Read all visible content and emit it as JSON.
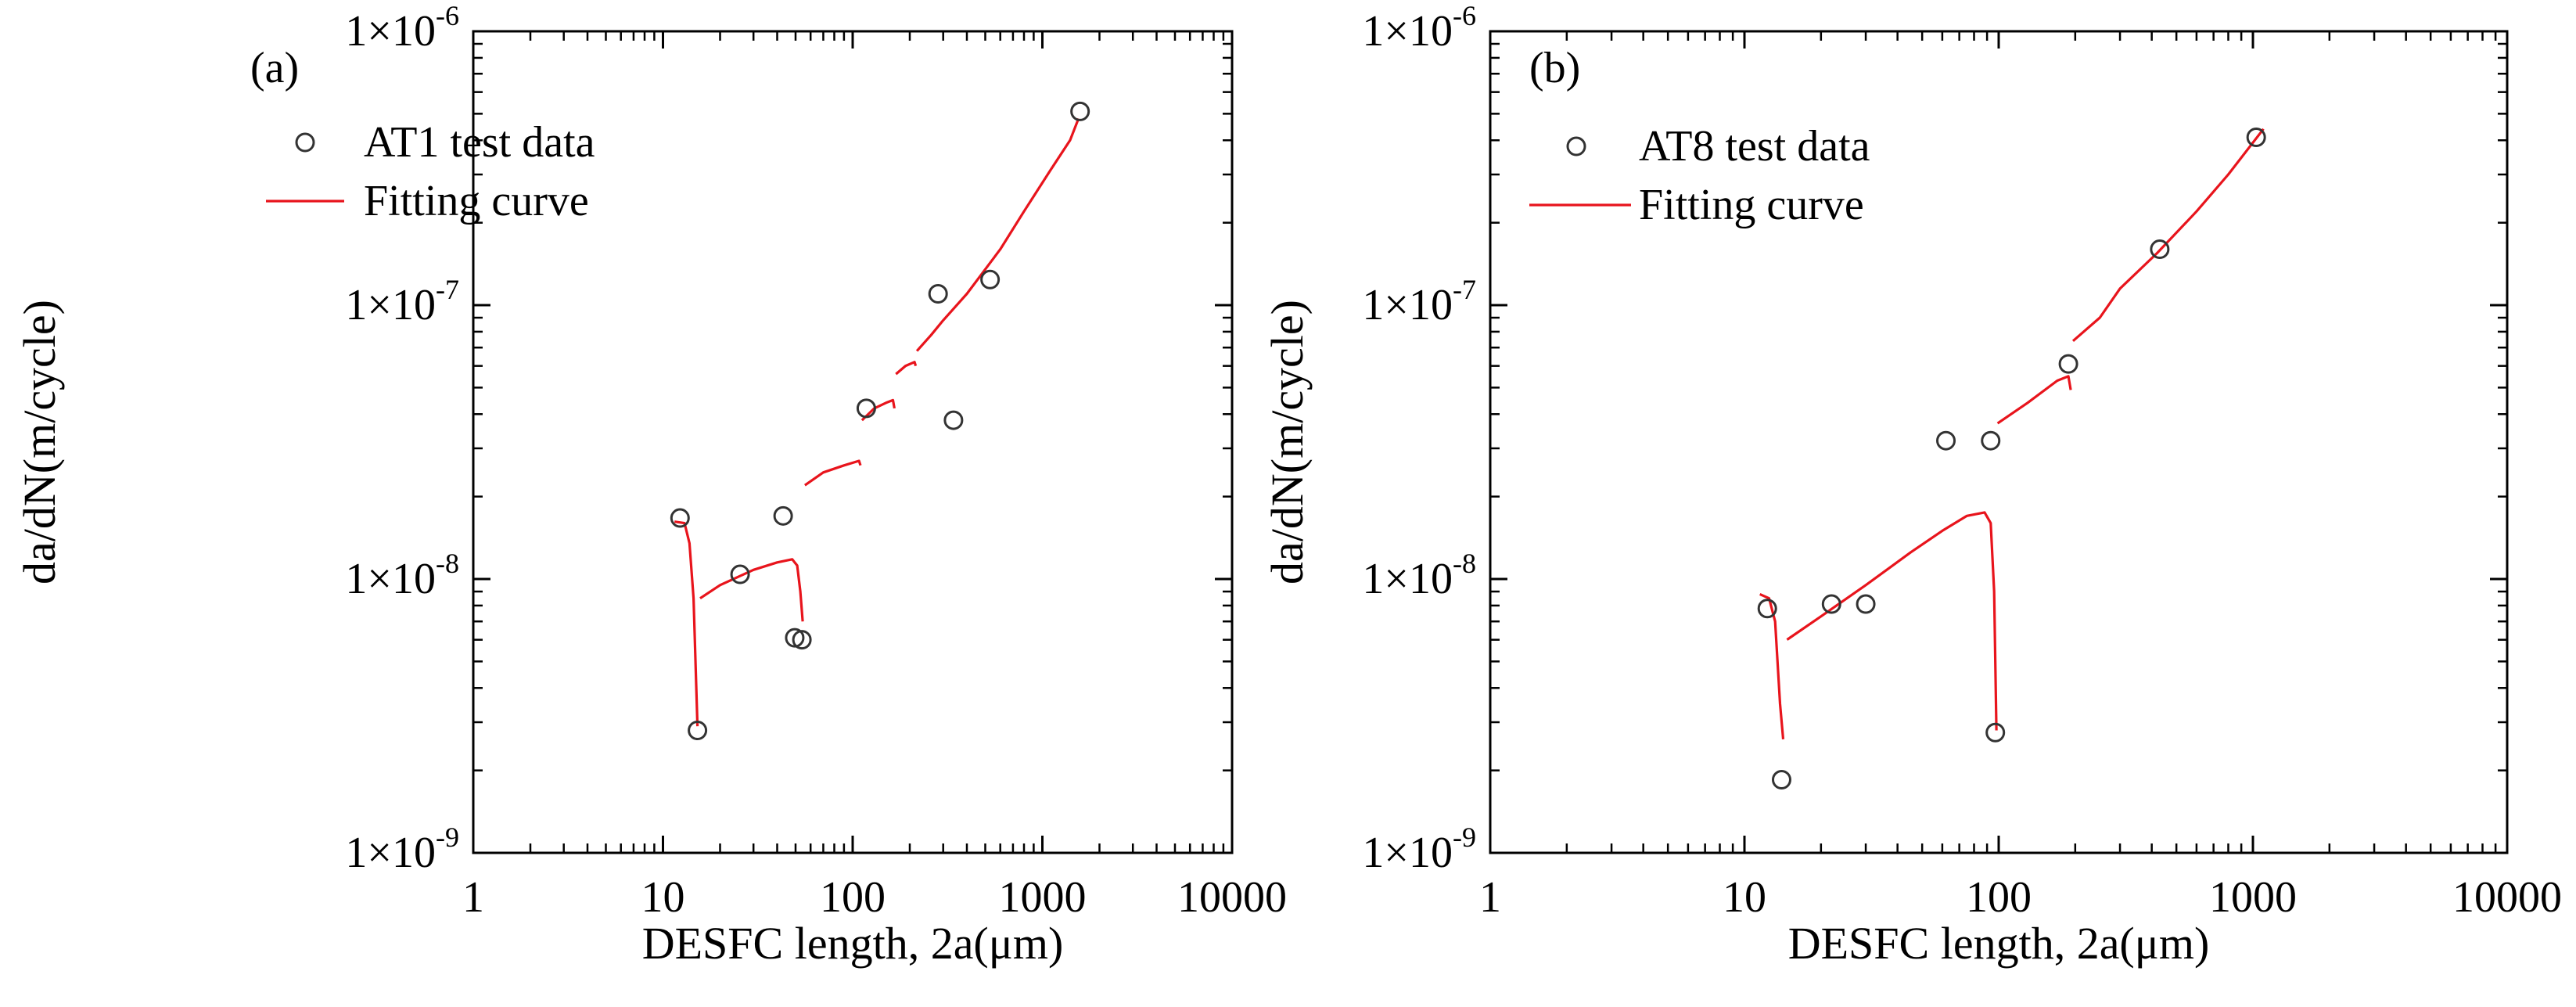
{
  "chart_data": [
    {
      "type": "scatter",
      "panel_label": "(a)",
      "title": "",
      "xlabel": "DESFC length, 2a(μm)",
      "ylabel": "da/dN(m/cycle)",
      "xscale": "log",
      "yscale": "log",
      "xlim": [
        1,
        10000
      ],
      "ylim": [
        1e-09,
        1e-06
      ],
      "x_ticks": [
        {
          "value": 1,
          "label": "1"
        },
        {
          "value": 10,
          "label": "10"
        },
        {
          "value": 100,
          "label": "100"
        },
        {
          "value": 1000,
          "label": "1000"
        },
        {
          "value": 10000,
          "label": "10000"
        }
      ],
      "y_ticks": [
        {
          "value": 1e-09,
          "base": "1×10",
          "exp": "-9"
        },
        {
          "value": 1e-08,
          "base": "1×10",
          "exp": "-8"
        },
        {
          "value": 1e-07,
          "base": "1×10",
          "exp": "-7"
        },
        {
          "value": 1e-06,
          "base": "1×10",
          "exp": "-6"
        }
      ],
      "legend_position": "top-left",
      "series": [
        {
          "name": "AT1 test data",
          "kind": "scatter",
          "marker": "open-circle",
          "color": "#333333",
          "points": [
            [
              12.3,
              1.67e-08
            ],
            [
              15.2,
              2.8e-09
            ],
            [
              25.5,
              1.04e-08
            ],
            [
              43.0,
              1.7e-08
            ],
            [
              49.5,
              6.1e-09
            ],
            [
              54.0,
              6e-09
            ],
            [
              118,
              4.2e-08
            ],
            [
              282,
              1.1e-07
            ],
            [
              340,
              3.8e-08
            ],
            [
              530,
              1.24e-07
            ],
            [
              1580,
              5.1e-07
            ]
          ]
        },
        {
          "name": "Fitting curve",
          "kind": "line",
          "color": "#e8141c",
          "segments": [
            [
              [
                11.5,
                1.62e-08
              ],
              [
                13.0,
                1.6e-08
              ],
              [
                13.8,
                1.35e-08
              ],
              [
                14.5,
                8.5e-09
              ],
              [
                15.2,
                2.9e-09
              ]
            ],
            [
              [
                15.7,
                8.5e-09
              ],
              [
                20,
                9.5e-09
              ],
              [
                30,
                1.08e-08
              ],
              [
                40,
                1.15e-08
              ],
              [
                48,
                1.18e-08
              ],
              [
                51,
                1.12e-08
              ],
              [
                53,
                9e-09
              ],
              [
                54.5,
                7e-09
              ]
            ],
            [
              [
                56,
                2.2e-08
              ],
              [
                70,
                2.45e-08
              ],
              [
                90,
                2.6e-08
              ],
              [
                108,
                2.7e-08
              ],
              [
                110,
                2.6e-08
              ]
            ],
            [
              [
                112,
                3.8e-08
              ],
              [
                130,
                4.2e-08
              ],
              [
                150,
                4.4e-08
              ],
              [
                163,
                4.5e-08
              ],
              [
                166,
                4.2e-08
              ]
            ],
            [
              [
                169,
                5.6e-08
              ],
              [
                190,
                6e-08
              ],
              [
                212,
                6.2e-08
              ],
              [
                215,
                6e-08
              ]
            ],
            [
              [
                218,
                6.8e-08
              ],
              [
                260,
                7.8e-08
              ],
              [
                300,
                8.8e-08
              ],
              [
                400,
                1.1e-07
              ],
              [
                600,
                1.6e-07
              ],
              [
                800,
                2.2e-07
              ],
              [
                1100,
                3.1e-07
              ],
              [
                1400,
                4e-07
              ],
              [
                1550,
                4.8e-07
              ]
            ]
          ]
        }
      ]
    },
    {
      "type": "scatter",
      "panel_label": "(b)",
      "title": "",
      "xlabel": "DESFC length, 2a(μm)",
      "ylabel": "da/dN(m/cycle)",
      "xscale": "log",
      "yscale": "log",
      "xlim": [
        1,
        10000
      ],
      "ylim": [
        1e-09,
        1e-06
      ],
      "x_ticks": [
        {
          "value": 1,
          "label": "1"
        },
        {
          "value": 10,
          "label": "10"
        },
        {
          "value": 100,
          "label": "100"
        },
        {
          "value": 1000,
          "label": "1000"
        },
        {
          "value": 10000,
          "label": "10000"
        }
      ],
      "y_ticks": [
        {
          "value": 1e-09,
          "base": "1×10",
          "exp": "-9"
        },
        {
          "value": 1e-08,
          "base": "1×10",
          "exp": "-8"
        },
        {
          "value": 1e-07,
          "base": "1×10",
          "exp": "-7"
        },
        {
          "value": 1e-06,
          "base": "1×10",
          "exp": "-6"
        }
      ],
      "legend_position": "top-left",
      "series": [
        {
          "name": "AT8 test data",
          "kind": "scatter",
          "marker": "open-circle",
          "color": "#333333",
          "points": [
            [
              12.3,
              7.8e-09
            ],
            [
              14.0,
              1.85e-09
            ],
            [
              22.0,
              8.1e-09
            ],
            [
              30.0,
              8.1e-09
            ],
            [
              62.0,
              3.2e-08
            ],
            [
              93.0,
              3.2e-08
            ],
            [
              97.0,
              2.75e-09
            ],
            [
              188,
              6.1e-08
            ],
            [
              430,
              1.6e-07
            ],
            [
              1030,
              4.1e-07
            ]
          ]
        },
        {
          "name": "Fitting curve",
          "kind": "line",
          "color": "#e8141c",
          "segments": [
            [
              [
                11.5,
                8.8e-09
              ],
              [
                12.5,
                8.5e-09
              ],
              [
                13.2,
                7e-09
              ],
              [
                13.8,
                3.5e-09
              ],
              [
                14.2,
                2.6e-09
              ]
            ],
            [
              [
                14.7,
                6e-09
              ],
              [
                20,
                7.3e-09
              ],
              [
                30,
                9.5e-09
              ],
              [
                45,
                1.25e-08
              ],
              [
                60,
                1.5e-08
              ],
              [
                75,
                1.7e-08
              ],
              [
                88,
                1.75e-08
              ],
              [
                93,
                1.6e-08
              ],
              [
                96,
                9e-09
              ],
              [
                98,
                2.8e-09
              ]
            ],
            [
              [
                99,
                3.7e-08
              ],
              [
                130,
                4.4e-08
              ],
              [
                170,
                5.3e-08
              ],
              [
                188,
                5.5e-08
              ],
              [
                192,
                4.9e-08
              ]
            ],
            [
              [
                196,
                7.4e-08
              ],
              [
                250,
                9e-08
              ],
              [
                300,
                1.15e-07
              ],
              [
                420,
                1.55e-07
              ],
              [
                600,
                2.2e-07
              ],
              [
                800,
                3e-07
              ],
              [
                1100,
                4.4e-07
              ]
            ]
          ]
        }
      ]
    }
  ]
}
